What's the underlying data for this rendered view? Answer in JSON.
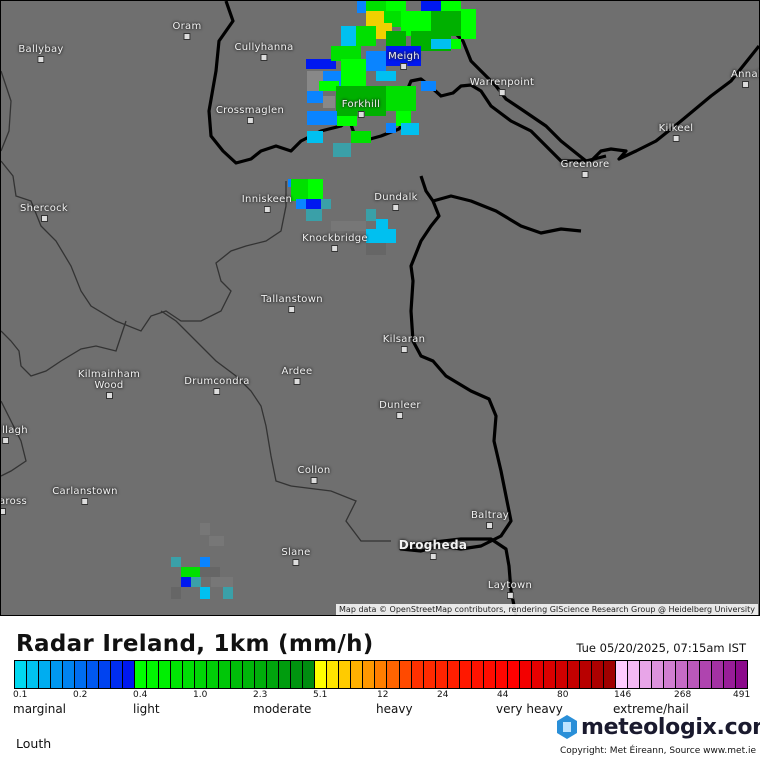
{
  "map": {
    "attribution": "Map data © OpenStreetMap contributors, rendering GIScience Research Group @ Heidelberg University",
    "towns": [
      {
        "name": "Oram"
      },
      {
        "name": "Ballybay"
      },
      {
        "name": "Cullyhanna"
      },
      {
        "name": "Meigh"
      },
      {
        "name": "Warrenpoint"
      },
      {
        "name": "Annal"
      },
      {
        "name": "Crossmaglen"
      },
      {
        "name": "Forkhill"
      },
      {
        "name": "Kilkeel"
      },
      {
        "name": "Greenore"
      },
      {
        "name": "Inniskeen"
      },
      {
        "name": "Dundalk"
      },
      {
        "name": "Shercock"
      },
      {
        "name": "Knockbridge"
      },
      {
        "name": "Tallanstown"
      },
      {
        "name": "Kilsaran"
      },
      {
        "name": "Kilmainham Wood"
      },
      {
        "name": "Drumcondra"
      },
      {
        "name": "Ardee"
      },
      {
        "name": "Dunleer"
      },
      {
        "name": "llagh"
      },
      {
        "name": "Collon"
      },
      {
        "name": "Carlanstown"
      },
      {
        "name": "aross"
      },
      {
        "name": "Baltray"
      },
      {
        "name": "Drogheda"
      },
      {
        "name": "Slane"
      },
      {
        "name": "Laytown"
      }
    ]
  },
  "legend": {
    "title": "Radar Ireland, 1km (mm/h)",
    "timestamp": "Tue 05/20/2025, 07:15am IST",
    "ticks": [
      "0.1",
      "0.2",
      "0.4",
      "1.0",
      "2.3",
      "5.1",
      "12",
      "24",
      "44",
      "80",
      "146",
      "268",
      "491"
    ],
    "categories": [
      "marginal",
      "light",
      "moderate",
      "heavy",
      "very heavy",
      "extreme/hail"
    ],
    "colors": {
      "marginal": [
        "#00d8f0",
        "#0018f0"
      ],
      "light": [
        "#00ff00",
        "#008c10"
      ],
      "heavy": [
        "#ffff00",
        "#ff3000",
        "#ff0000",
        "#a00000"
      ],
      "extreme": [
        "#ffccff",
        "#8c0a8c"
      ]
    },
    "region": "Louth",
    "brand": "meteologix.com",
    "copyright": "Copyright: Met Éireann, Source www.met.ie"
  }
}
